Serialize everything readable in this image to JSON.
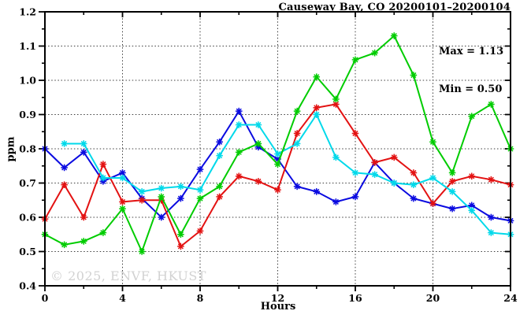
{
  "title": "Causeway Bay, CO 20200101–20200104",
  "annotation": {
    "max_label": "Max = 1.13",
    "min_label": "Min = 0.50"
  },
  "watermark": "© 2025, ENVF, HKUST",
  "axes": {
    "ylabel": "ppm",
    "xlabel": "Hours"
  },
  "chart_data": {
    "type": "line",
    "title": "Causeway Bay, CO 20200101–20200104",
    "xlabel": "Hours",
    "ylabel": "ppm",
    "xlim": [
      0,
      24
    ],
    "ylim": [
      0.4,
      1.2
    ],
    "grid": "dotted, horizontal at 0.5-1.1 step 0.1, vertical at hours 4,8,12,16,20",
    "legend_position": "none",
    "marker": "asterisk",
    "max": 1.13,
    "min": 0.5,
    "x": [
      0,
      1,
      2,
      3,
      4,
      5,
      6,
      7,
      8,
      9,
      10,
      11,
      12,
      13,
      14,
      15,
      16,
      17,
      18,
      19,
      20,
      21,
      22,
      23,
      24
    ],
    "x_major_ticks": [
      0,
      4,
      8,
      12,
      16,
      20,
      24
    ],
    "x_minor_ticks": [
      2,
      6,
      10,
      14,
      18,
      22
    ],
    "x_tick_labels": [
      "0",
      "4",
      "8",
      "12",
      "16",
      "20",
      "24"
    ],
    "y_major_ticks": [
      0.4,
      0.5,
      0.6,
      0.7,
      0.8,
      0.9,
      1.0,
      1.1,
      1.2
    ],
    "y_minor_ticks": [
      0.45,
      0.55,
      0.65,
      0.75,
      0.85,
      0.95,
      1.05,
      1.15
    ],
    "y_tick_labels": [
      "0.4",
      "0.5",
      "0.6",
      "0.7",
      "0.8",
      "0.9",
      "1.0",
      "1.1",
      "1.2"
    ],
    "y_gridlines": [
      0.5,
      0.6,
      0.7,
      0.8,
      0.9,
      1.0,
      1.1
    ],
    "x_gridlines": [
      4,
      8,
      12,
      16,
      20
    ],
    "series": [
      {
        "name": "series-blue",
        "color": "#0a0ae0",
        "values": [
          0.8,
          0.745,
          0.79,
          0.705,
          0.73,
          0.655,
          0.6,
          0.655,
          0.74,
          0.82,
          0.91,
          0.805,
          0.77,
          0.69,
          0.675,
          0.645,
          0.66,
          0.76,
          0.7,
          0.655,
          0.64,
          0.625,
          0.635,
          0.6,
          0.59
        ]
      },
      {
        "name": "series-red",
        "color": "#e31212",
        "values": [
          0.595,
          0.695,
          0.6,
          0.755,
          0.645,
          0.65,
          0.65,
          0.515,
          0.56,
          0.66,
          0.72,
          0.705,
          0.68,
          0.845,
          0.92,
          0.93,
          0.845,
          0.76,
          0.775,
          0.73,
          0.64,
          0.705,
          0.72,
          0.71,
          0.695
        ]
      },
      {
        "name": "series-cyan",
        "color": "#00d9ea",
        "values": [
          null,
          0.815,
          0.815,
          0.715,
          0.715,
          0.675,
          0.685,
          0.69,
          0.68,
          0.78,
          0.87,
          0.87,
          0.785,
          0.815,
          0.9,
          0.775,
          0.73,
          0.725,
          0.7,
          0.695,
          0.715,
          0.675,
          0.62,
          0.555,
          0.55
        ]
      },
      {
        "name": "series-green",
        "color": "#00cc00",
        "values": [
          0.55,
          0.52,
          0.53,
          0.555,
          0.625,
          0.5,
          0.66,
          0.55,
          0.655,
          0.69,
          0.79,
          0.815,
          0.755,
          0.91,
          1.01,
          0.945,
          1.06,
          1.08,
          1.13,
          1.015,
          0.82,
          0.73,
          0.895,
          0.93,
          0.8
        ]
      }
    ]
  },
  "style": {
    "frame_color": "#000000",
    "grid_color": "#3c3c3c",
    "watermark_color": "#d2d2d2"
  }
}
